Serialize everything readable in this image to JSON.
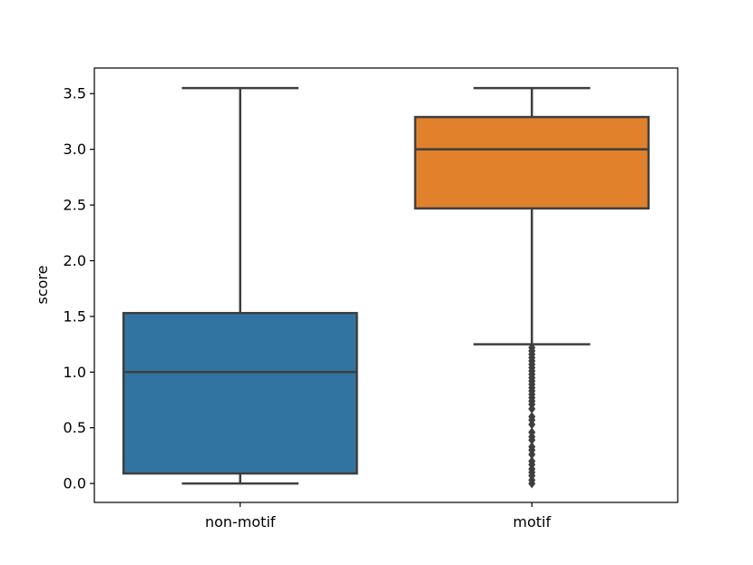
{
  "chart_data": {
    "type": "box",
    "title": "",
    "xlabel": "",
    "ylabel": "score",
    "ylim": [
      -0.17,
      3.73
    ],
    "yticks": [
      0.0,
      0.5,
      1.0,
      1.5,
      2.0,
      2.5,
      3.0,
      3.5
    ],
    "ytick_labels": [
      "0.0",
      "0.5",
      "1.0",
      "1.5",
      "2.0",
      "2.5",
      "3.0",
      "3.5"
    ],
    "grid": false,
    "legend": "none",
    "categories": [
      "non-motif",
      "motif"
    ],
    "boxes": [
      {
        "category": "non-motif",
        "color": "#3274a1",
        "whisker_low": 0.0,
        "q1": 0.09,
        "median": 1.0,
        "q3": 1.53,
        "whisker_high": 3.55,
        "outliers": []
      },
      {
        "category": "motif",
        "color": "#e1812c",
        "whisker_low": 1.25,
        "q1": 2.47,
        "median": 3.0,
        "q3": 3.29,
        "whisker_high": 3.55,
        "outliers": [
          1.22,
          1.19,
          1.16,
          1.13,
          1.1,
          1.07,
          1.04,
          1.01,
          0.98,
          0.95,
          0.92,
          0.89,
          0.86,
          0.83,
          0.8,
          0.77,
          0.74,
          0.71,
          0.67,
          0.6,
          0.57,
          0.53,
          0.46,
          0.42,
          0.39,
          0.33,
          0.3,
          0.26,
          0.2,
          0.17,
          0.13,
          0.1,
          0.07,
          0.03,
          0.0
        ]
      }
    ]
  }
}
